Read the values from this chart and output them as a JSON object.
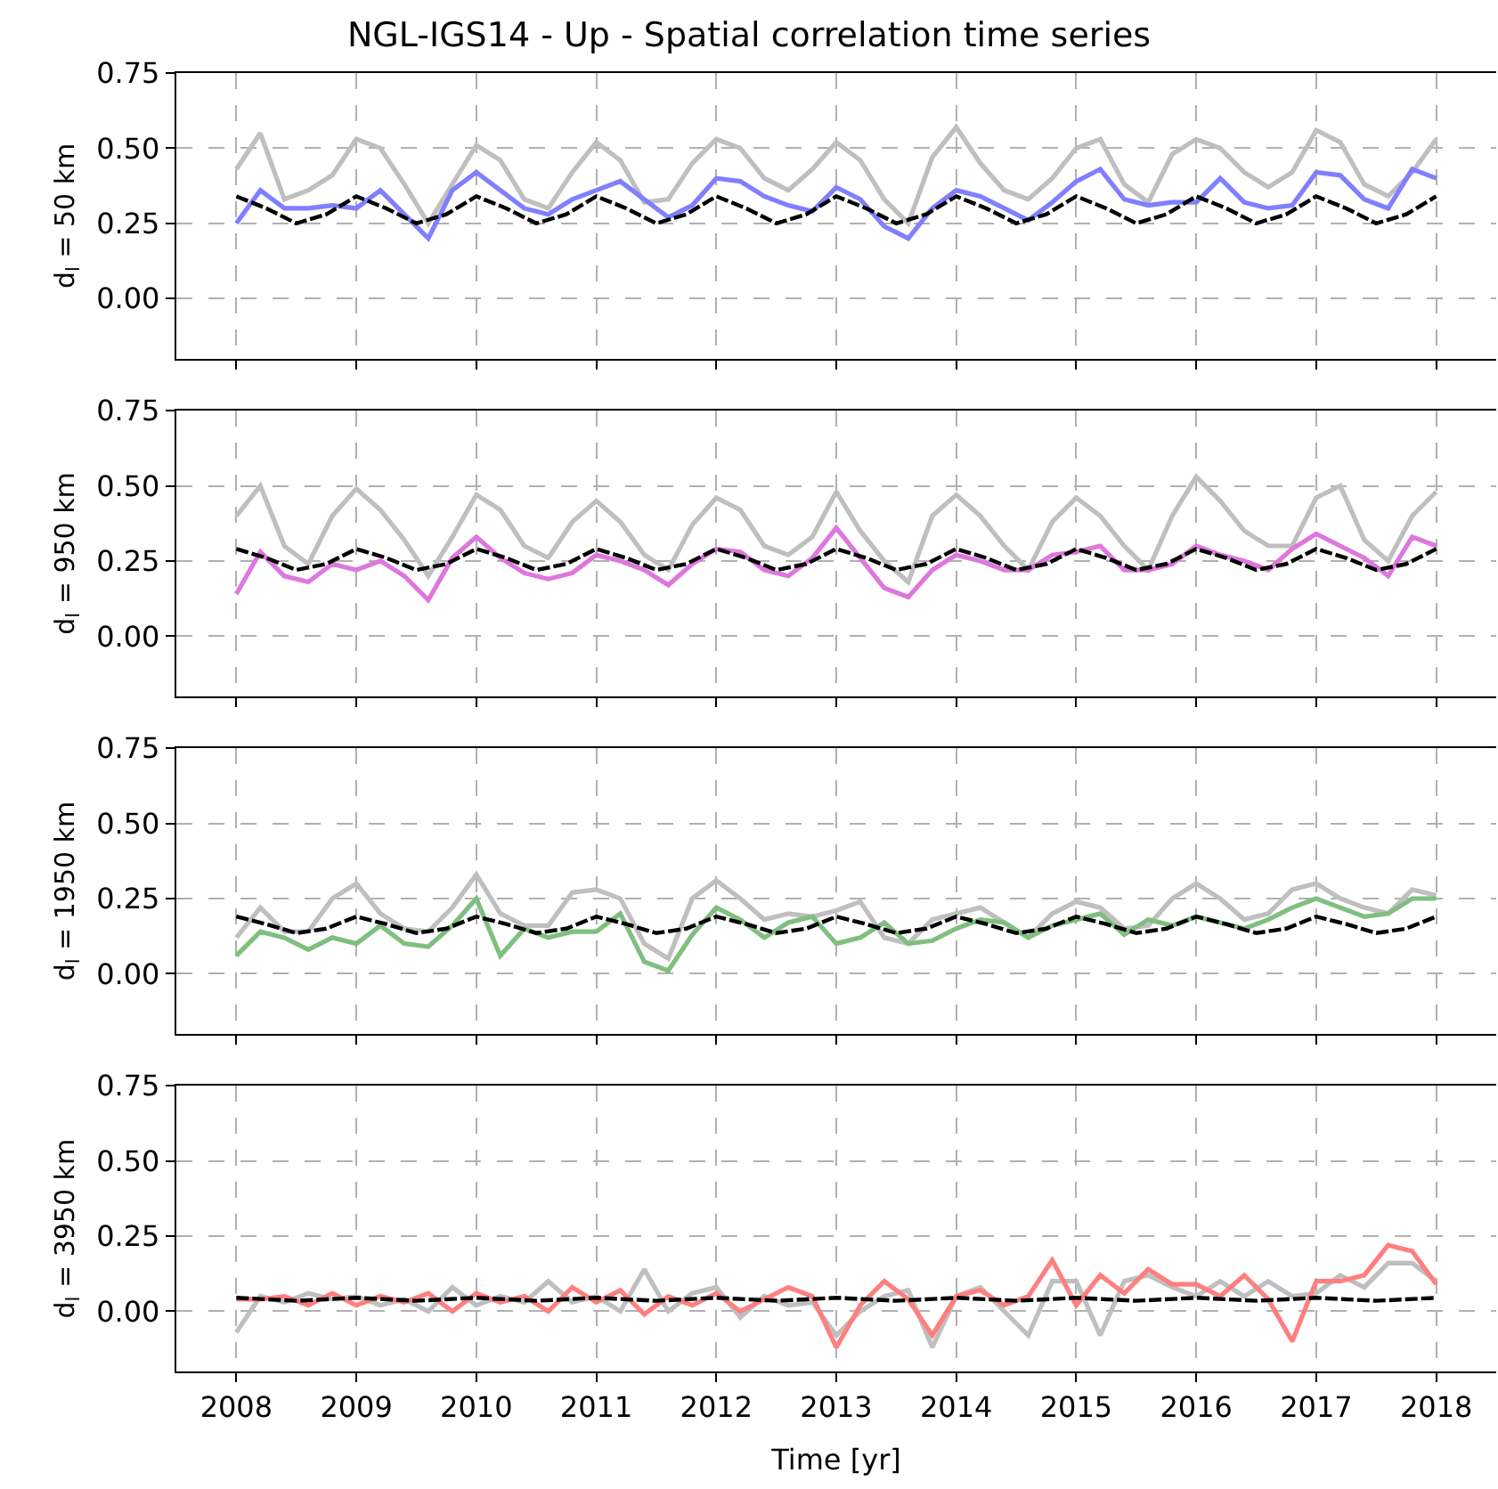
{
  "chart_data": [
    {
      "type": "line",
      "title": "NGL-IGS14 - Up - Spatial correlation time series",
      "ylabel": "d$_{l}$ = 50 km",
      "tick_labels": "y",
      "grid": true,
      "x": [
        2008.0,
        2008.2,
        2008.4,
        2008.6,
        2008.8,
        2009.0,
        2009.2,
        2009.4,
        2009.6,
        2009.8,
        2010.0,
        2010.2,
        2010.4,
        2010.6,
        2010.8,
        2011.0,
        2011.2,
        2011.4,
        2011.6,
        2011.8,
        2012.0,
        2012.2,
        2012.4,
        2012.6,
        2012.8,
        2013.0,
        2013.2,
        2013.4,
        2013.6,
        2013.8,
        2014.0,
        2014.2,
        2014.4,
        2014.6,
        2014.8,
        2015.0,
        2015.2,
        2015.4,
        2015.6,
        2015.8,
        2016.0,
        2016.2,
        2016.4,
        2016.6,
        2016.8,
        2017.0,
        2017.2,
        2017.4,
        2017.6,
        2017.8,
        2018.0
      ],
      "xlim": [
        2007.5,
        2018.5
      ],
      "xticks": [
        2008,
        2009,
        2010,
        2011,
        2012,
        2013,
        2014,
        2015,
        2016,
        2017,
        2018
      ],
      "ylim": [
        -0.2,
        0.75
      ],
      "yticks": [
        {
          "value": 0,
          "label": "0.00"
        },
        {
          "value": 0.25,
          "label": "0.25"
        },
        {
          "value": 0.5,
          "label": "0.50"
        },
        {
          "value": 0.75,
          "label": "0.75"
        }
      ],
      "series": [
        {
          "color": "#bfbfbf",
          "values": [
            0.43,
            0.55,
            0.33,
            0.36,
            0.41,
            0.53,
            0.5,
            0.38,
            0.25,
            0.38,
            0.51,
            0.46,
            0.33,
            0.3,
            0.42,
            0.52,
            0.46,
            0.32,
            0.33,
            0.45,
            0.53,
            0.5,
            0.4,
            0.36,
            0.43,
            0.52,
            0.46,
            0.33,
            0.25,
            0.47,
            0.57,
            0.45,
            0.36,
            0.33,
            0.4,
            0.5,
            0.53,
            0.38,
            0.32,
            0.48,
            0.53,
            0.5,
            0.42,
            0.37,
            0.42,
            0.56,
            0.52,
            0.38,
            0.34,
            0.42,
            0.53
          ]
        },
        {
          "color": "#7f7fff",
          "values": [
            0.25,
            0.36,
            0.3,
            0.3,
            0.31,
            0.3,
            0.36,
            0.28,
            0.2,
            0.36,
            0.42,
            0.36,
            0.3,
            0.28,
            0.33,
            0.36,
            0.39,
            0.33,
            0.27,
            0.31,
            0.4,
            0.39,
            0.34,
            0.31,
            0.29,
            0.37,
            0.33,
            0.24,
            0.2,
            0.3,
            0.36,
            0.34,
            0.3,
            0.26,
            0.32,
            0.39,
            0.43,
            0.33,
            0.31,
            0.32,
            0.32,
            0.4,
            0.32,
            0.3,
            0.31,
            0.42,
            0.41,
            0.33,
            0.3,
            0.43,
            0.4
          ]
        },
        {
          "color": "#000000",
          "line_style": "dashed",
          "x": [
            2008.0,
            2008.25,
            2008.5,
            2008.75,
            2009.0,
            2009.25,
            2009.5,
            2009.75,
            2010.0,
            2010.25,
            2010.5,
            2010.75,
            2011.0,
            2011.25,
            2011.5,
            2011.75,
            2012.0,
            2012.25,
            2012.5,
            2012.75,
            2013.0,
            2013.25,
            2013.5,
            2013.75,
            2014.0,
            2014.25,
            2014.5,
            2014.75,
            2015.0,
            2015.25,
            2015.5,
            2015.75,
            2016.0,
            2016.25,
            2016.5,
            2016.75,
            2017.0,
            2017.25,
            2017.5,
            2017.75,
            2018.0
          ],
          "values": [
            0.34,
            0.3,
            0.25,
            0.28,
            0.34,
            0.3,
            0.25,
            0.28,
            0.34,
            0.3,
            0.25,
            0.28,
            0.34,
            0.3,
            0.25,
            0.28,
            0.34,
            0.3,
            0.25,
            0.28,
            0.34,
            0.3,
            0.25,
            0.28,
            0.34,
            0.3,
            0.25,
            0.28,
            0.34,
            0.3,
            0.25,
            0.28,
            0.34,
            0.3,
            0.25,
            0.28,
            0.34,
            0.3,
            0.25,
            0.28,
            0.34
          ]
        }
      ]
    },
    {
      "type": "line",
      "ylabel": "d$_{l}$ = 950 km",
      "tick_labels": "y",
      "grid": true,
      "x": [
        2008.0,
        2008.2,
        2008.4,
        2008.6,
        2008.8,
        2009.0,
        2009.2,
        2009.4,
        2009.6,
        2009.8,
        2010.0,
        2010.2,
        2010.4,
        2010.6,
        2010.8,
        2011.0,
        2011.2,
        2011.4,
        2011.6,
        2011.8,
        2012.0,
        2012.2,
        2012.4,
        2012.6,
        2012.8,
        2013.0,
        2013.2,
        2013.4,
        2013.6,
        2013.8,
        2014.0,
        2014.2,
        2014.4,
        2014.6,
        2014.8,
        2015.0,
        2015.2,
        2015.4,
        2015.6,
        2015.8,
        2016.0,
        2016.2,
        2016.4,
        2016.6,
        2016.8,
        2017.0,
        2017.2,
        2017.4,
        2017.6,
        2017.8,
        2018.0
      ],
      "xlim": [
        2007.5,
        2018.5
      ],
      "xticks": [
        2008,
        2009,
        2010,
        2011,
        2012,
        2013,
        2014,
        2015,
        2016,
        2017,
        2018
      ],
      "ylim": [
        -0.2,
        0.75
      ],
      "yticks": [
        {
          "value": 0,
          "label": "0.00"
        },
        {
          "value": 0.25,
          "label": "0.25"
        },
        {
          "value": 0.5,
          "label": "0.50"
        },
        {
          "value": 0.75,
          "label": "0.75"
        }
      ],
      "series": [
        {
          "color": "#bfbfbf",
          "values": [
            0.4,
            0.5,
            0.3,
            0.24,
            0.4,
            0.49,
            0.42,
            0.32,
            0.2,
            0.33,
            0.47,
            0.42,
            0.3,
            0.26,
            0.38,
            0.45,
            0.38,
            0.27,
            0.22,
            0.37,
            0.46,
            0.42,
            0.3,
            0.27,
            0.33,
            0.48,
            0.35,
            0.25,
            0.18,
            0.4,
            0.47,
            0.4,
            0.3,
            0.22,
            0.38,
            0.46,
            0.4,
            0.3,
            0.22,
            0.4,
            0.53,
            0.45,
            0.35,
            0.3,
            0.3,
            0.46,
            0.5,
            0.32,
            0.25,
            0.4,
            0.48
          ]
        },
        {
          "color": "#dd77dd",
          "values": [
            0.14,
            0.28,
            0.2,
            0.18,
            0.24,
            0.22,
            0.25,
            0.2,
            0.12,
            0.26,
            0.33,
            0.26,
            0.21,
            0.19,
            0.21,
            0.27,
            0.25,
            0.22,
            0.17,
            0.24,
            0.29,
            0.28,
            0.22,
            0.2,
            0.26,
            0.36,
            0.26,
            0.16,
            0.13,
            0.22,
            0.27,
            0.25,
            0.22,
            0.22,
            0.27,
            0.28,
            0.3,
            0.22,
            0.22,
            0.24,
            0.3,
            0.27,
            0.25,
            0.22,
            0.29,
            0.34,
            0.3,
            0.26,
            0.2,
            0.33,
            0.3
          ]
        },
        {
          "color": "#000000",
          "line_style": "dashed",
          "x": [
            2008.0,
            2008.25,
            2008.5,
            2008.75,
            2009.0,
            2009.25,
            2009.5,
            2009.75,
            2010.0,
            2010.25,
            2010.5,
            2010.75,
            2011.0,
            2011.25,
            2011.5,
            2011.75,
            2012.0,
            2012.25,
            2012.5,
            2012.75,
            2013.0,
            2013.25,
            2013.5,
            2013.75,
            2014.0,
            2014.25,
            2014.5,
            2014.75,
            2015.0,
            2015.25,
            2015.5,
            2015.75,
            2016.0,
            2016.25,
            2016.5,
            2016.75,
            2017.0,
            2017.25,
            2017.5,
            2017.75,
            2018.0
          ],
          "values": [
            0.29,
            0.26,
            0.22,
            0.24,
            0.29,
            0.26,
            0.22,
            0.24,
            0.29,
            0.26,
            0.22,
            0.24,
            0.29,
            0.26,
            0.22,
            0.24,
            0.29,
            0.26,
            0.22,
            0.24,
            0.29,
            0.26,
            0.22,
            0.24,
            0.29,
            0.26,
            0.22,
            0.24,
            0.29,
            0.26,
            0.22,
            0.24,
            0.29,
            0.26,
            0.22,
            0.24,
            0.29,
            0.26,
            0.22,
            0.24,
            0.29
          ]
        }
      ]
    },
    {
      "type": "line",
      "ylabel": "d$_{l}$ = 1950 km",
      "tick_labels": "y",
      "grid": true,
      "x": [
        2008.0,
        2008.2,
        2008.4,
        2008.6,
        2008.8,
        2009.0,
        2009.2,
        2009.4,
        2009.6,
        2009.8,
        2010.0,
        2010.2,
        2010.4,
        2010.6,
        2010.8,
        2011.0,
        2011.2,
        2011.4,
        2011.6,
        2011.8,
        2012.0,
        2012.2,
        2012.4,
        2012.6,
        2012.8,
        2013.0,
        2013.2,
        2013.4,
        2013.6,
        2013.8,
        2014.0,
        2014.2,
        2014.4,
        2014.6,
        2014.8,
        2015.0,
        2015.2,
        2015.4,
        2015.6,
        2015.8,
        2016.0,
        2016.2,
        2016.4,
        2016.6,
        2016.8,
        2017.0,
        2017.2,
        2017.4,
        2017.6,
        2017.8,
        2018.0
      ],
      "xlim": [
        2007.5,
        2018.5
      ],
      "xticks": [
        2008,
        2009,
        2010,
        2011,
        2012,
        2013,
        2014,
        2015,
        2016,
        2017,
        2018
      ],
      "ylim": [
        -0.2,
        0.75
      ],
      "yticks": [
        {
          "value": 0,
          "label": "0.00"
        },
        {
          "value": 0.25,
          "label": "0.25"
        },
        {
          "value": 0.5,
          "label": "0.50"
        },
        {
          "value": 0.75,
          "label": "0.75"
        }
      ],
      "series": [
        {
          "color": "#bfbfbf",
          "values": [
            0.12,
            0.22,
            0.14,
            0.14,
            0.25,
            0.3,
            0.2,
            0.15,
            0.14,
            0.22,
            0.33,
            0.2,
            0.16,
            0.16,
            0.27,
            0.28,
            0.25,
            0.1,
            0.05,
            0.25,
            0.31,
            0.25,
            0.18,
            0.2,
            0.19,
            0.21,
            0.24,
            0.12,
            0.1,
            0.18,
            0.2,
            0.22,
            0.17,
            0.12,
            0.2,
            0.24,
            0.22,
            0.15,
            0.16,
            0.25,
            0.3,
            0.25,
            0.18,
            0.2,
            0.28,
            0.3,
            0.25,
            0.22,
            0.2,
            0.28,
            0.26
          ]
        },
        {
          "color": "#7fbf7f",
          "values": [
            0.06,
            0.14,
            0.12,
            0.08,
            0.12,
            0.1,
            0.16,
            0.1,
            0.09,
            0.16,
            0.25,
            0.06,
            0.15,
            0.12,
            0.14,
            0.14,
            0.2,
            0.04,
            0.01,
            0.13,
            0.22,
            0.18,
            0.12,
            0.17,
            0.19,
            0.1,
            0.12,
            0.17,
            0.1,
            0.11,
            0.15,
            0.18,
            0.17,
            0.12,
            0.16,
            0.18,
            0.2,
            0.13,
            0.18,
            0.16,
            0.19,
            0.17,
            0.15,
            0.18,
            0.22,
            0.25,
            0.22,
            0.19,
            0.2,
            0.25,
            0.25
          ]
        },
        {
          "color": "#000000",
          "line_style": "dashed",
          "x": [
            2008.0,
            2008.25,
            2008.5,
            2008.75,
            2009.0,
            2009.25,
            2009.5,
            2009.75,
            2010.0,
            2010.25,
            2010.5,
            2010.75,
            2011.0,
            2011.25,
            2011.5,
            2011.75,
            2012.0,
            2012.25,
            2012.5,
            2012.75,
            2013.0,
            2013.25,
            2013.5,
            2013.75,
            2014.0,
            2014.25,
            2014.5,
            2014.75,
            2015.0,
            2015.25,
            2015.5,
            2015.75,
            2016.0,
            2016.25,
            2016.5,
            2016.75,
            2017.0,
            2017.25,
            2017.5,
            2017.75,
            2018.0
          ],
          "values": [
            0.19,
            0.165,
            0.135,
            0.15,
            0.19,
            0.165,
            0.135,
            0.15,
            0.19,
            0.165,
            0.135,
            0.15,
            0.19,
            0.165,
            0.135,
            0.15,
            0.19,
            0.165,
            0.135,
            0.15,
            0.19,
            0.165,
            0.135,
            0.15,
            0.19,
            0.165,
            0.135,
            0.15,
            0.19,
            0.165,
            0.135,
            0.15,
            0.19,
            0.165,
            0.135,
            0.15,
            0.19,
            0.165,
            0.135,
            0.15,
            0.19
          ]
        }
      ]
    },
    {
      "type": "line",
      "ylabel": "d$_{l}$ = 3950 km",
      "xlabel": "Time [yr]",
      "grid": true,
      "x": [
        2008.0,
        2008.2,
        2008.4,
        2008.6,
        2008.8,
        2009.0,
        2009.2,
        2009.4,
        2009.6,
        2009.8,
        2010.0,
        2010.2,
        2010.4,
        2010.6,
        2010.8,
        2011.0,
        2011.2,
        2011.4,
        2011.6,
        2011.8,
        2012.0,
        2012.2,
        2012.4,
        2012.6,
        2012.8,
        2013.0,
        2013.2,
        2013.4,
        2013.6,
        2013.8,
        2014.0,
        2014.2,
        2014.4,
        2014.6,
        2014.8,
        2015.0,
        2015.2,
        2015.4,
        2015.6,
        2015.8,
        2016.0,
        2016.2,
        2016.4,
        2016.6,
        2016.8,
        2017.0,
        2017.2,
        2017.4,
        2017.6,
        2017.8,
        2018.0
      ],
      "xlim": [
        2007.5,
        2018.5
      ],
      "xticks": [
        2008,
        2009,
        2010,
        2011,
        2012,
        2013,
        2014,
        2015,
        2016,
        2017,
        2018
      ],
      "ylim": [
        -0.2,
        0.75
      ],
      "yticks": [
        {
          "value": 0,
          "label": "0.00"
        },
        {
          "value": 0.25,
          "label": "0.25"
        },
        {
          "value": 0.5,
          "label": "0.50"
        },
        {
          "value": 0.75,
          "label": "0.75"
        }
      ],
      "series": [
        {
          "color": "#bfbfbf",
          "values": [
            -0.07,
            0.05,
            0.03,
            0.06,
            0.04,
            0.05,
            0.02,
            0.04,
            0.0,
            0.08,
            0.02,
            0.05,
            0.03,
            0.1,
            0.03,
            0.05,
            0.0,
            0.14,
            0.0,
            0.06,
            0.08,
            -0.02,
            0.05,
            0.02,
            0.03,
            -0.08,
            0.0,
            0.05,
            0.07,
            -0.12,
            0.05,
            0.08,
            0.0,
            -0.08,
            0.1,
            0.1,
            -0.08,
            0.1,
            0.12,
            0.08,
            0.05,
            0.1,
            0.05,
            0.1,
            0.05,
            0.06,
            0.12,
            0.08,
            0.16,
            0.16,
            0.1
          ]
        },
        {
          "color": "#ff7f7f",
          "values": [
            0.04,
            0.04,
            0.05,
            0.02,
            0.06,
            0.02,
            0.05,
            0.03,
            0.06,
            0.0,
            0.06,
            0.03,
            0.05,
            0.0,
            0.08,
            0.03,
            0.07,
            -0.01,
            0.05,
            0.02,
            0.06,
            0.0,
            0.04,
            0.08,
            0.05,
            -0.12,
            0.02,
            0.1,
            0.04,
            -0.08,
            0.05,
            0.07,
            0.02,
            0.05,
            0.17,
            0.02,
            0.12,
            0.06,
            0.14,
            0.09,
            0.09,
            0.05,
            0.12,
            0.04,
            -0.1,
            0.1,
            0.1,
            0.12,
            0.22,
            0.2,
            0.09
          ]
        },
        {
          "color": "#000000",
          "line_style": "dashed",
          "x": [
            2008.0,
            2008.25,
            2008.5,
            2008.75,
            2009.0,
            2009.25,
            2009.5,
            2009.75,
            2010.0,
            2010.25,
            2010.5,
            2010.75,
            2011.0,
            2011.25,
            2011.5,
            2011.75,
            2012.0,
            2012.25,
            2012.5,
            2012.75,
            2013.0,
            2013.25,
            2013.5,
            2013.75,
            2014.0,
            2014.25,
            2014.5,
            2014.75,
            2015.0,
            2015.25,
            2015.5,
            2015.75,
            2016.0,
            2016.25,
            2016.5,
            2016.75,
            2017.0,
            2017.25,
            2017.5,
            2017.75,
            2018.0
          ],
          "values": [
            0.045,
            0.04,
            0.035,
            0.04,
            0.045,
            0.04,
            0.035,
            0.04,
            0.045,
            0.04,
            0.035,
            0.04,
            0.045,
            0.04,
            0.035,
            0.04,
            0.045,
            0.04,
            0.035,
            0.04,
            0.045,
            0.04,
            0.035,
            0.04,
            0.045,
            0.04,
            0.035,
            0.04,
            0.045,
            0.04,
            0.035,
            0.04,
            0.045,
            0.04,
            0.035,
            0.04,
            0.045,
            0.04,
            0.035,
            0.04,
            0.045
          ]
        }
      ]
    }
  ]
}
